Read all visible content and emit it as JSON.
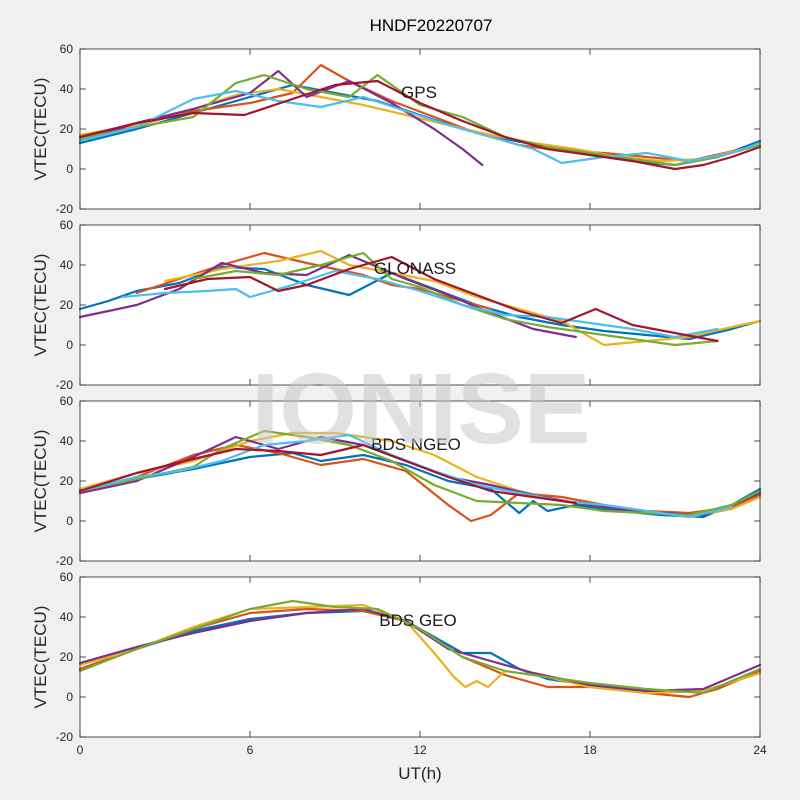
{
  "chart_data": {
    "type": "line",
    "title": "HNDF20220707",
    "xlabel": "UT(h)",
    "watermark": "IONISE",
    "xlim": [
      0,
      24
    ],
    "xticks": [
      0,
      6,
      12,
      18,
      24
    ],
    "colors": [
      "#0072BD",
      "#D95319",
      "#EDB120",
      "#7E2F8E",
      "#77AC30",
      "#4DBEEE",
      "#A2142F"
    ],
    "panels": [
      {
        "label": "GPS",
        "ylabel": "VTEC(TECU)",
        "ylim": [
          -20,
          60
        ],
        "yticks": [
          -20,
          0,
          20,
          40,
          60
        ],
        "series": [
          {
            "color": "#0072BD",
            "x": [
              0,
              2,
              4,
              6,
              7.5,
              9,
              10.5,
              12,
              13.5,
              15,
              16.5,
              18,
              19.5,
              21,
              22.5,
              24
            ],
            "y": [
              13,
              20,
              28,
              36,
              42,
              38,
              34,
              27,
              20,
              15,
              11,
              7,
              4,
              2,
              6,
              14
            ]
          },
          {
            "color": "#D95319",
            "x": [
              0,
              2,
              4,
              6,
              7.5,
              8.5,
              9.5,
              11,
              12.5,
              14,
              15.5,
              17,
              18.5,
              20,
              21.5,
              24
            ],
            "y": [
              15,
              22,
              29,
              33,
              38,
              52,
              44,
              34,
              26,
              18,
              12,
              9,
              8,
              6,
              4,
              12
            ]
          },
          {
            "color": "#EDB120",
            "x": [
              0,
              2,
              4,
              5.5,
              7,
              8.5,
              10,
              11.5,
              13,
              14.5,
              16,
              17.5,
              19,
              20.5,
              22,
              24
            ],
            "y": [
              17,
              22,
              30,
              37,
              40,
              36,
              32,
              27,
              22,
              17,
              13,
              10,
              6,
              4,
              5,
              12
            ]
          },
          {
            "color": "#7E2F8E",
            "x": [
              0,
              2,
              4,
              6,
              7,
              8,
              9.5,
              11,
              12.5,
              13.5,
              14.2
            ],
            "y": [
              14,
              23,
              30,
              38,
              49,
              36,
              44,
              33,
              20,
              10,
              2
            ]
          },
          {
            "color": "#77AC30",
            "x": [
              0,
              2,
              4,
              5.5,
              6.5,
              8,
              9.5,
              10.5,
              12,
              13.5,
              15,
              16.5,
              18,
              19.5,
              21,
              22.5,
              24
            ],
            "y": [
              15,
              21,
              26,
              43,
              47,
              40,
              36,
              47,
              32,
              26,
              16,
              11,
              8,
              5,
              2,
              6,
              12
            ]
          },
          {
            "color": "#4DBEEE",
            "x": [
              0,
              2,
              4,
              5.5,
              7,
              8.5,
              10,
              11.5,
              13,
              14.5,
              16,
              17,
              18.5,
              20,
              21.5,
              23,
              24
            ],
            "y": [
              14,
              21,
              35,
              39,
              34,
              31,
              36,
              29,
              22,
              16,
              10,
              3,
              6,
              8,
              4,
              8,
              13
            ]
          },
          {
            "color": "#A2142F",
            "x": [
              0,
              2,
              4,
              5.8,
              7.5,
              9,
              10.5,
              12,
              13.5,
              15,
              16.5,
              18,
              19.5,
              21,
              22,
              23,
              24
            ],
            "y": [
              16,
              23,
              28,
              27,
              35,
              42,
              44,
              33,
              24,
              16,
              10,
              7,
              4,
              0,
              2,
              6,
              11
            ]
          }
        ]
      },
      {
        "label": "GLONASS",
        "ylabel": "VTEC(TECU)",
        "ylim": [
          -20,
          60
        ],
        "yticks": [
          -20,
          0,
          20,
          40,
          60
        ],
        "series": [
          {
            "color": "#0072BD",
            "x": [
              0,
              0.5,
              1,
              2,
              3.5,
              5,
              6.5,
              8,
              9.5,
              11,
              12.5,
              14,
              15.5,
              17,
              18.5,
              20,
              21.5,
              23,
              24
            ],
            "y": [
              18,
              20,
              22,
              27,
              31,
              39,
              38,
              30,
              25,
              36,
              28,
              20,
              14,
              10,
              7,
              5,
              3,
              8,
              12
            ]
          },
          {
            "color": "#D95319",
            "x": [
              2,
              3.5,
              5,
              6.5,
              8,
              9,
              10,
              11,
              12,
              13,
              14.5
            ],
            "y": [
              26,
              33,
              40,
              46,
              41,
              38,
              35,
              30,
              28,
              24,
              18
            ]
          },
          {
            "color": "#EDB120",
            "x": [
              3,
              5,
              7,
              8.5,
              9.5,
              11,
              12.5,
              14,
              15.5,
              17,
              18.5,
              20,
              21.5,
              23,
              24
            ],
            "y": [
              32,
              38,
              42,
              47,
              40,
              36,
              32,
              24,
              18,
              12,
              0,
              2,
              4,
              9,
              12
            ]
          },
          {
            "color": "#7E2F8E",
            "x": [
              0,
              2,
              3.5,
              5,
              6.5,
              8,
              9.5,
              10.5,
              11.5,
              13,
              14.5,
              16,
              17.5
            ],
            "y": [
              14,
              20,
              28,
              41,
              36,
              35,
              45,
              39,
              33,
              25,
              16,
              8,
              4
            ]
          },
          {
            "color": "#77AC30",
            "x": [
              4,
              5.5,
              7,
              8.5,
              10,
              11,
              12,
              13.5,
              15,
              16.5,
              18,
              19.5,
              21,
              22.5
            ],
            "y": [
              33,
              37,
              35,
              40,
              46,
              33,
              29,
              20,
              13,
              9,
              6,
              3,
              0,
              2
            ]
          },
          {
            "color": "#4DBEEE",
            "x": [
              1.5,
              3,
              4.5,
              5.5,
              6,
              7.5,
              9,
              10.5,
              12,
              13.5,
              15,
              16.5,
              18,
              19.5,
              21,
              22.5
            ],
            "y": [
              24,
              26,
              27,
              28,
              24,
              30,
              37,
              33,
              27,
              20,
              15,
              14,
              11,
              8,
              4,
              8
            ]
          },
          {
            "color": "#A2142F",
            "x": [
              3,
              4.5,
              6,
              7,
              8,
              9.5,
              11,
              12.5,
              14,
              15.5,
              17,
              18.2,
              19.5,
              21,
              22.5
            ],
            "y": [
              28,
              33,
              34,
              27,
              30,
              38,
              44,
              33,
              25,
              17,
              11,
              18,
              10,
              6,
              2
            ]
          }
        ]
      },
      {
        "label": "BDS NGEO",
        "ylabel": "VTEC(TECU)",
        "ylim": [
          -20,
          60
        ],
        "yticks": [
          -20,
          0,
          20,
          40,
          60
        ],
        "series": [
          {
            "color": "#0072BD",
            "x": [
              0,
              2,
              4,
              6,
              7.5,
              8.5,
              10,
              11.5,
              13,
              14.5,
              15.5,
              16,
              16.5,
              17.5,
              19,
              20.5,
              22,
              23,
              24
            ],
            "y": [
              15,
              21,
              26,
              32,
              34,
              30,
              33,
              28,
              20,
              16,
              4,
              10,
              5,
              8,
              5,
              3,
              2,
              8,
              16
            ]
          },
          {
            "color": "#D95319",
            "x": [
              0,
              2,
              4,
              5.5,
              7,
              8.5,
              10,
              11.5,
              13,
              13.8,
              14.5,
              15.5,
              17,
              18.5,
              20,
              21.5,
              23,
              24
            ],
            "y": [
              15,
              22,
              33,
              38,
              34,
              28,
              31,
              25,
              8,
              0,
              3,
              14,
              12,
              8,
              5,
              4,
              7,
              13
            ]
          },
          {
            "color": "#EDB120",
            "x": [
              0,
              2,
              4,
              6,
              7.5,
              9,
              11,
              12.5,
              14,
              15.5,
              17,
              18.5,
              20,
              21.5,
              23,
              24
            ],
            "y": [
              16,
              24,
              30,
              40,
              44,
              44,
              40,
              33,
              22,
              15,
              10,
              7,
              5,
              2,
              6,
              12
            ]
          },
          {
            "color": "#7E2F8E",
            "x": [
              0,
              2,
              4,
              5.5,
              7,
              8.5,
              10,
              11.5,
              13,
              14.5,
              16,
              17.5,
              19,
              20.5,
              22,
              23,
              24
            ],
            "y": [
              14,
              20,
              32,
              42,
              36,
              42,
              38,
              30,
              22,
              18,
              13,
              9,
              6,
              4,
              3,
              8,
              14
            ]
          },
          {
            "color": "#77AC30",
            "x": [
              0,
              2,
              4,
              5,
              6.5,
              8,
              9.5,
              11,
              12.5,
              14,
              15.5,
              17,
              18.5,
              20,
              21.5,
              23,
              24
            ],
            "y": [
              15,
              21,
              27,
              36,
              45,
              42,
              38,
              30,
              18,
              10,
              9,
              8,
              5,
              4,
              3,
              8,
              15
            ]
          },
          {
            "color": "#4DBEEE",
            "x": [
              0,
              2,
              3.5,
              5,
              6.5,
              8,
              9.5,
              11,
              12.5,
              14,
              15.5,
              17,
              18.5,
              20,
              21.5,
              23
            ],
            "y": [
              15,
              22,
              25,
              30,
              38,
              40,
              43,
              33,
              25,
              18,
              14,
              10,
              8,
              5,
              2,
              7
            ]
          },
          {
            "color": "#A2142F",
            "x": [
              0,
              2,
              4,
              5.5,
              7,
              8.5,
              10,
              11.5,
              13,
              14.5,
              16,
              17.5
            ],
            "y": [
              15,
              24,
              31,
              36,
              35,
              33,
              38,
              30,
              22,
              15,
              12,
              9
            ]
          }
        ]
      },
      {
        "label": "BDS GEO",
        "ylabel": "VTEC(TECU)",
        "ylim": [
          -20,
          60
        ],
        "yticks": [
          -20,
          0,
          20,
          40,
          60
        ],
        "series": [
          {
            "color": "#0072BD",
            "x": [
              0,
              2,
              4,
              6,
              8,
              10,
              11.5,
              12.5,
              13.5,
              14.5,
              15.5,
              16.5,
              18,
              20,
              22,
              24
            ],
            "y": [
              14,
              24,
              33,
              39,
              42,
              43,
              38,
              30,
              22,
              22,
              14,
              9,
              6,
              3,
              3,
              12
            ]
          },
          {
            "color": "#D95319",
            "x": [
              0,
              2,
              4,
              6,
              8,
              10,
              11.5,
              12.5,
              13.5,
              15,
              16.5,
              18,
              20,
              21.5,
              22.5,
              24
            ],
            "y": [
              14,
              24,
              34,
              42,
              44,
              43,
              38,
              29,
              20,
              11,
              5,
              5,
              2,
              0,
              4,
              13
            ]
          },
          {
            "color": "#EDB120",
            "x": [
              0,
              2,
              4,
              6,
              8,
              10,
              11.5,
              12.5,
              13.2,
              13.6,
              14,
              14.4,
              15,
              16.5,
              18,
              20,
              22,
              24
            ],
            "y": [
              16,
              24,
              35,
              44,
              45,
              46,
              38,
              22,
              10,
              5,
              8,
              5,
              13,
              10,
              5,
              2,
              3,
              12
            ]
          },
          {
            "color": "#7E2F8E",
            "x": [
              0,
              2,
              4,
              6,
              8,
              10,
              11.5,
              13,
              14.5,
              16,
              18,
              20,
              22,
              24
            ],
            "y": [
              17,
              25,
              32,
              38,
              42,
              44,
              38,
              24,
              18,
              12,
              6,
              3,
              4,
              16
            ]
          },
          {
            "color": "#77AC30",
            "x": [
              0,
              2,
              4,
              6,
              7.5,
              9,
              10.5,
              12,
              13.5,
              15,
              16.5,
              18,
              20,
              22,
              24
            ],
            "y": [
              13,
              24,
              34,
              44,
              48,
              45,
              44,
              34,
              20,
              13,
              10,
              7,
              4,
              2,
              14
            ]
          }
        ]
      }
    ]
  }
}
